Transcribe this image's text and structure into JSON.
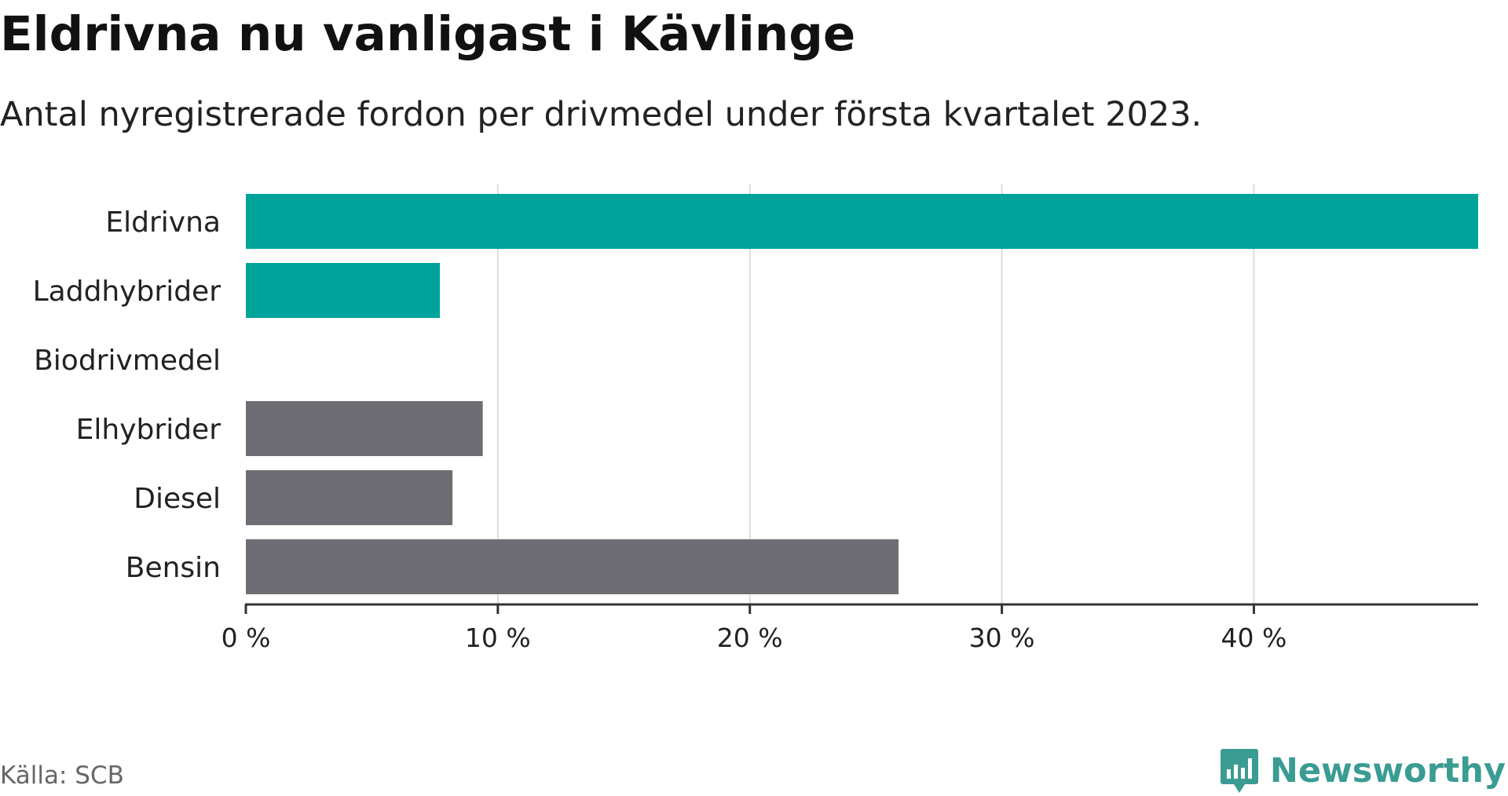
{
  "header": {
    "title": "Eldrivna nu vanligast i Kävlinge",
    "subtitle": "Antal nyregistrerade fordon per drivmedel under första kvartalet 2023."
  },
  "footer": {
    "source": "Källa: SCB",
    "brand": "Newsworthy",
    "brand_icon": "newsworthy-logo-icon"
  },
  "chart_data": {
    "type": "bar",
    "orientation": "horizontal",
    "categories": [
      "Eldrivna",
      "Laddhybrider",
      "Biodrivmedel",
      "Elhybrider",
      "Diesel",
      "Bensin"
    ],
    "values": [
      48.9,
      7.7,
      0,
      9.4,
      8.2,
      25.9
    ],
    "unit": "%",
    "xlim": [
      0,
      48.9
    ],
    "xticks": [
      0,
      10,
      20,
      30,
      40
    ],
    "xtick_labels": [
      "0 %",
      "10 %",
      "20 %",
      "30 %",
      "40 %"
    ],
    "grid": "vertical",
    "bar_colors": [
      "#00a39a",
      "#00a39a",
      "#00a39a",
      "#6e6d73",
      "#6e6d73",
      "#6e6d73"
    ],
    "colors": {
      "highlight": "#00a39a",
      "other": "#6e6d73",
      "grid": "#dddddd",
      "axis": "#333333"
    }
  }
}
